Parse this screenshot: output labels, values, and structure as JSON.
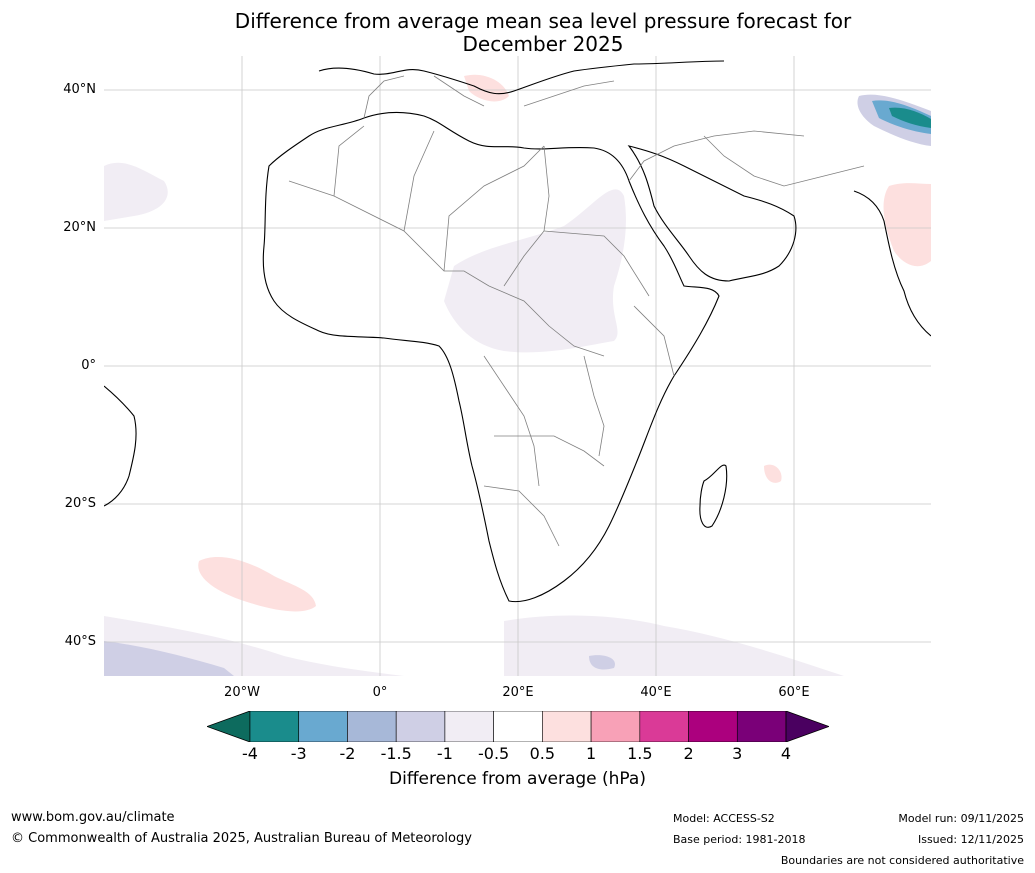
{
  "title_line1": "Difference from average mean sea level pressure forecast for",
  "title_line2": "December 2025",
  "map": {
    "lat_labels": [
      "40°N",
      "20°N",
      "0°",
      "20°S",
      "40°S"
    ],
    "lon_labels": [
      "20°W",
      "0°",
      "20°E",
      "40°E",
      "60°E"
    ],
    "region": "Africa, Europe, Middle East",
    "lat_range": [
      -45,
      45
    ],
    "lon_range": [
      -40,
      80
    ]
  },
  "colorbar": {
    "ticks": [
      "-4",
      "-3",
      "-2",
      "-1.5",
      "-1",
      "-0.5",
      "0.5",
      "1",
      "1.5",
      "2",
      "3",
      "4"
    ],
    "colors": [
      "#1a8c8c",
      "#69a9d0",
      "#a7b8d8",
      "#cfcfe5",
      "#f1edf4",
      "#ffffff",
      "#fde0df",
      "#f8a1b7",
      "#da3a97",
      "#ac007e",
      "#7a0078"
    ],
    "under_color": "#0d6b5e",
    "over_color": "#4a0060",
    "label": "Difference from average (hPa)"
  },
  "footer": {
    "website": "www.bom.gov.au/climate",
    "copyright": "© Commonwealth of Australia 2025, Australian Bureau of Meteorology",
    "model": "Model: ACCESS-S2",
    "base_period": "Base period: 1981-2018",
    "model_run": "Model run: 09/11/2025",
    "issued": "Issued: 12/11/2025",
    "disclaimer": "Boundaries are not considered authoritative"
  }
}
